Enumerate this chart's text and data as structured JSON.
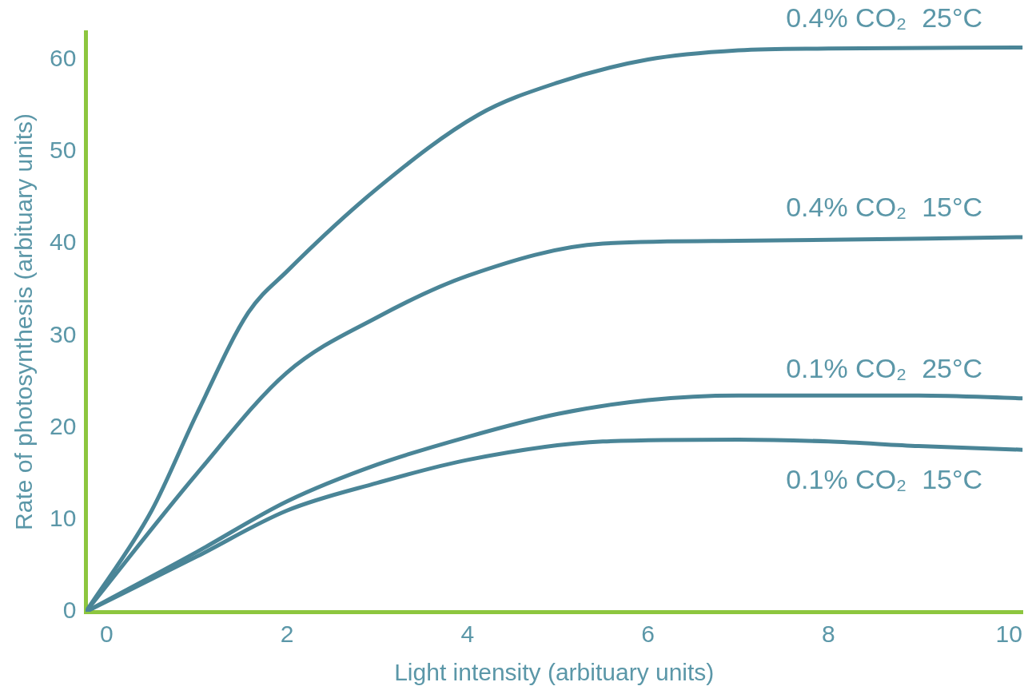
{
  "chart_data": {
    "type": "line",
    "xlabel": "Light intensity (arbituary units)",
    "ylabel": "Rate of photosynthesis (arbituary units)",
    "xlim": [
      -0.23,
      10.15
    ],
    "xticks": [
      0,
      2,
      4,
      6,
      8,
      10
    ],
    "ylim": [
      0,
      63
    ],
    "yticks": [
      0,
      10,
      20,
      30,
      40,
      50,
      60
    ],
    "grid": false,
    "legend": false,
    "marker": "none",
    "line_style": "solid",
    "series": [
      {
        "name": "0.4% CO₂  25°C",
        "color": "#4a8597",
        "x": [
          -0.23,
          0.5,
          1,
          1.57,
          2,
          3,
          4.12,
          5,
          6,
          7,
          8,
          10.15
        ],
        "values": [
          0,
          11,
          21.5,
          32.5,
          37,
          46,
          54,
          57.5,
          60,
          61,
          61.2,
          61.3
        ]
      },
      {
        "name": "0.4% CO₂  15°C",
        "color": "#4a8597",
        "x": [
          -0.23,
          1,
          2,
          3,
          4,
          5.5,
          7,
          10.15
        ],
        "values": [
          0,
          15,
          26,
          32,
          36.5,
          40,
          40.3,
          40.7
        ]
      },
      {
        "name": "0.1% CO₂  25°C",
        "color": "#4a8597",
        "x": [
          -0.23,
          1,
          2,
          3,
          4,
          5,
          6,
          7,
          9,
          10.15
        ],
        "values": [
          0,
          6.5,
          12,
          16,
          19,
          21.5,
          23,
          23.5,
          23.5,
          23.2
        ]
      },
      {
        "name": "0.1% CO₂  15°C",
        "color": "#4a8597",
        "x": [
          -0.23,
          1,
          2,
          3,
          4,
          5.5,
          7,
          8,
          9,
          10.15
        ],
        "values": [
          0,
          6,
          11,
          14,
          16.5,
          18.5,
          18.7,
          18.5,
          18,
          17.6
        ]
      }
    ]
  }
}
